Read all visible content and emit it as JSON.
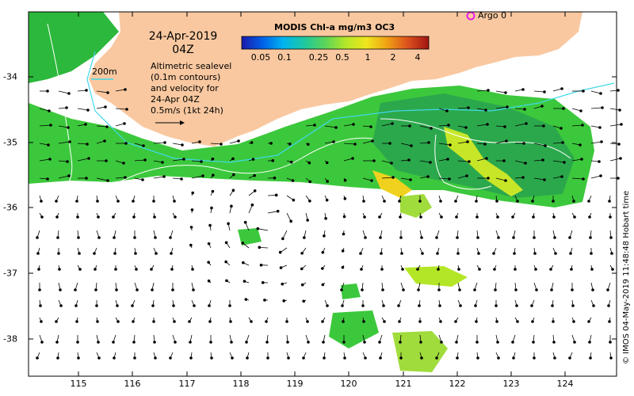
{
  "map": {
    "date_line1": "24-Apr-2019",
    "date_line2": "04Z",
    "colorbar_title": "MODIS Chl-a mg/m3 OC3",
    "colorbar_ticks": [
      "0.05",
      "0.1",
      "0.25",
      "0.5",
      "1",
      "2",
      "4"
    ],
    "colorbar_colors": [
      "#1a1aa8",
      "#0060e8",
      "#00b4f0",
      "#1ec8a0",
      "#5ad45a",
      "#b4e628",
      "#f0e61e",
      "#f0a014",
      "#dc501e",
      "#a01414"
    ],
    "description": [
      "Altimetric sealevel",
      "(0.1m contours)",
      "and velocity for",
      "24-Apr 04Z",
      "0.5m/s (1kt 24h)"
    ],
    "contour_label": "200m",
    "argo_label": "Argo 0",
    "credit": "© IMOS 04-May-2019 11:48:48 Hobart time",
    "lon_ticks": [
      "115",
      "116",
      "117",
      "118",
      "119",
      "120",
      "121",
      "122",
      "123",
      "124"
    ],
    "lat_ticks": [
      "-34",
      "-35",
      "-36",
      "-37",
      "-38"
    ],
    "land_color": "#f9c8a0",
    "coast_chl_color": "#3cc83c",
    "isobath_color": "#40d8e8"
  }
}
